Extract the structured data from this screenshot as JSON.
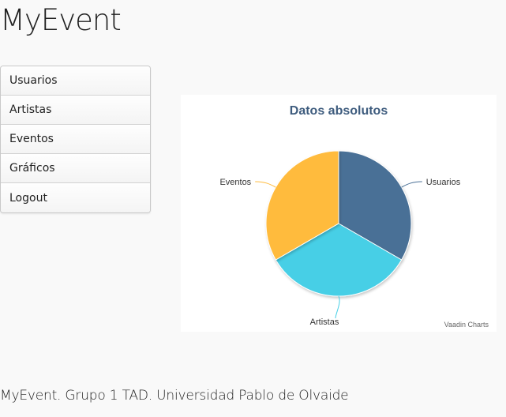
{
  "app": {
    "title": "MyEvent"
  },
  "menu": {
    "items": [
      {
        "label": "Usuarios"
      },
      {
        "label": "Artistas"
      },
      {
        "label": "Eventos"
      },
      {
        "label": "Gráficos"
      },
      {
        "label": "Logout"
      }
    ]
  },
  "chart_data": {
    "type": "pie",
    "title": "Datos absolutos",
    "credits": "Vaadin Charts",
    "categories": [
      "Usuarios",
      "Artistas",
      "Eventos"
    ],
    "values": [
      1,
      1,
      1
    ],
    "colors": [
      "#4a7096",
      "#47cfe6",
      "#ffbb3d"
    ],
    "legend": "none",
    "data_labels": true
  },
  "footer": {
    "text": "MyEvent. Grupo 1 TAD. Universidad Pablo de Olvaide"
  }
}
